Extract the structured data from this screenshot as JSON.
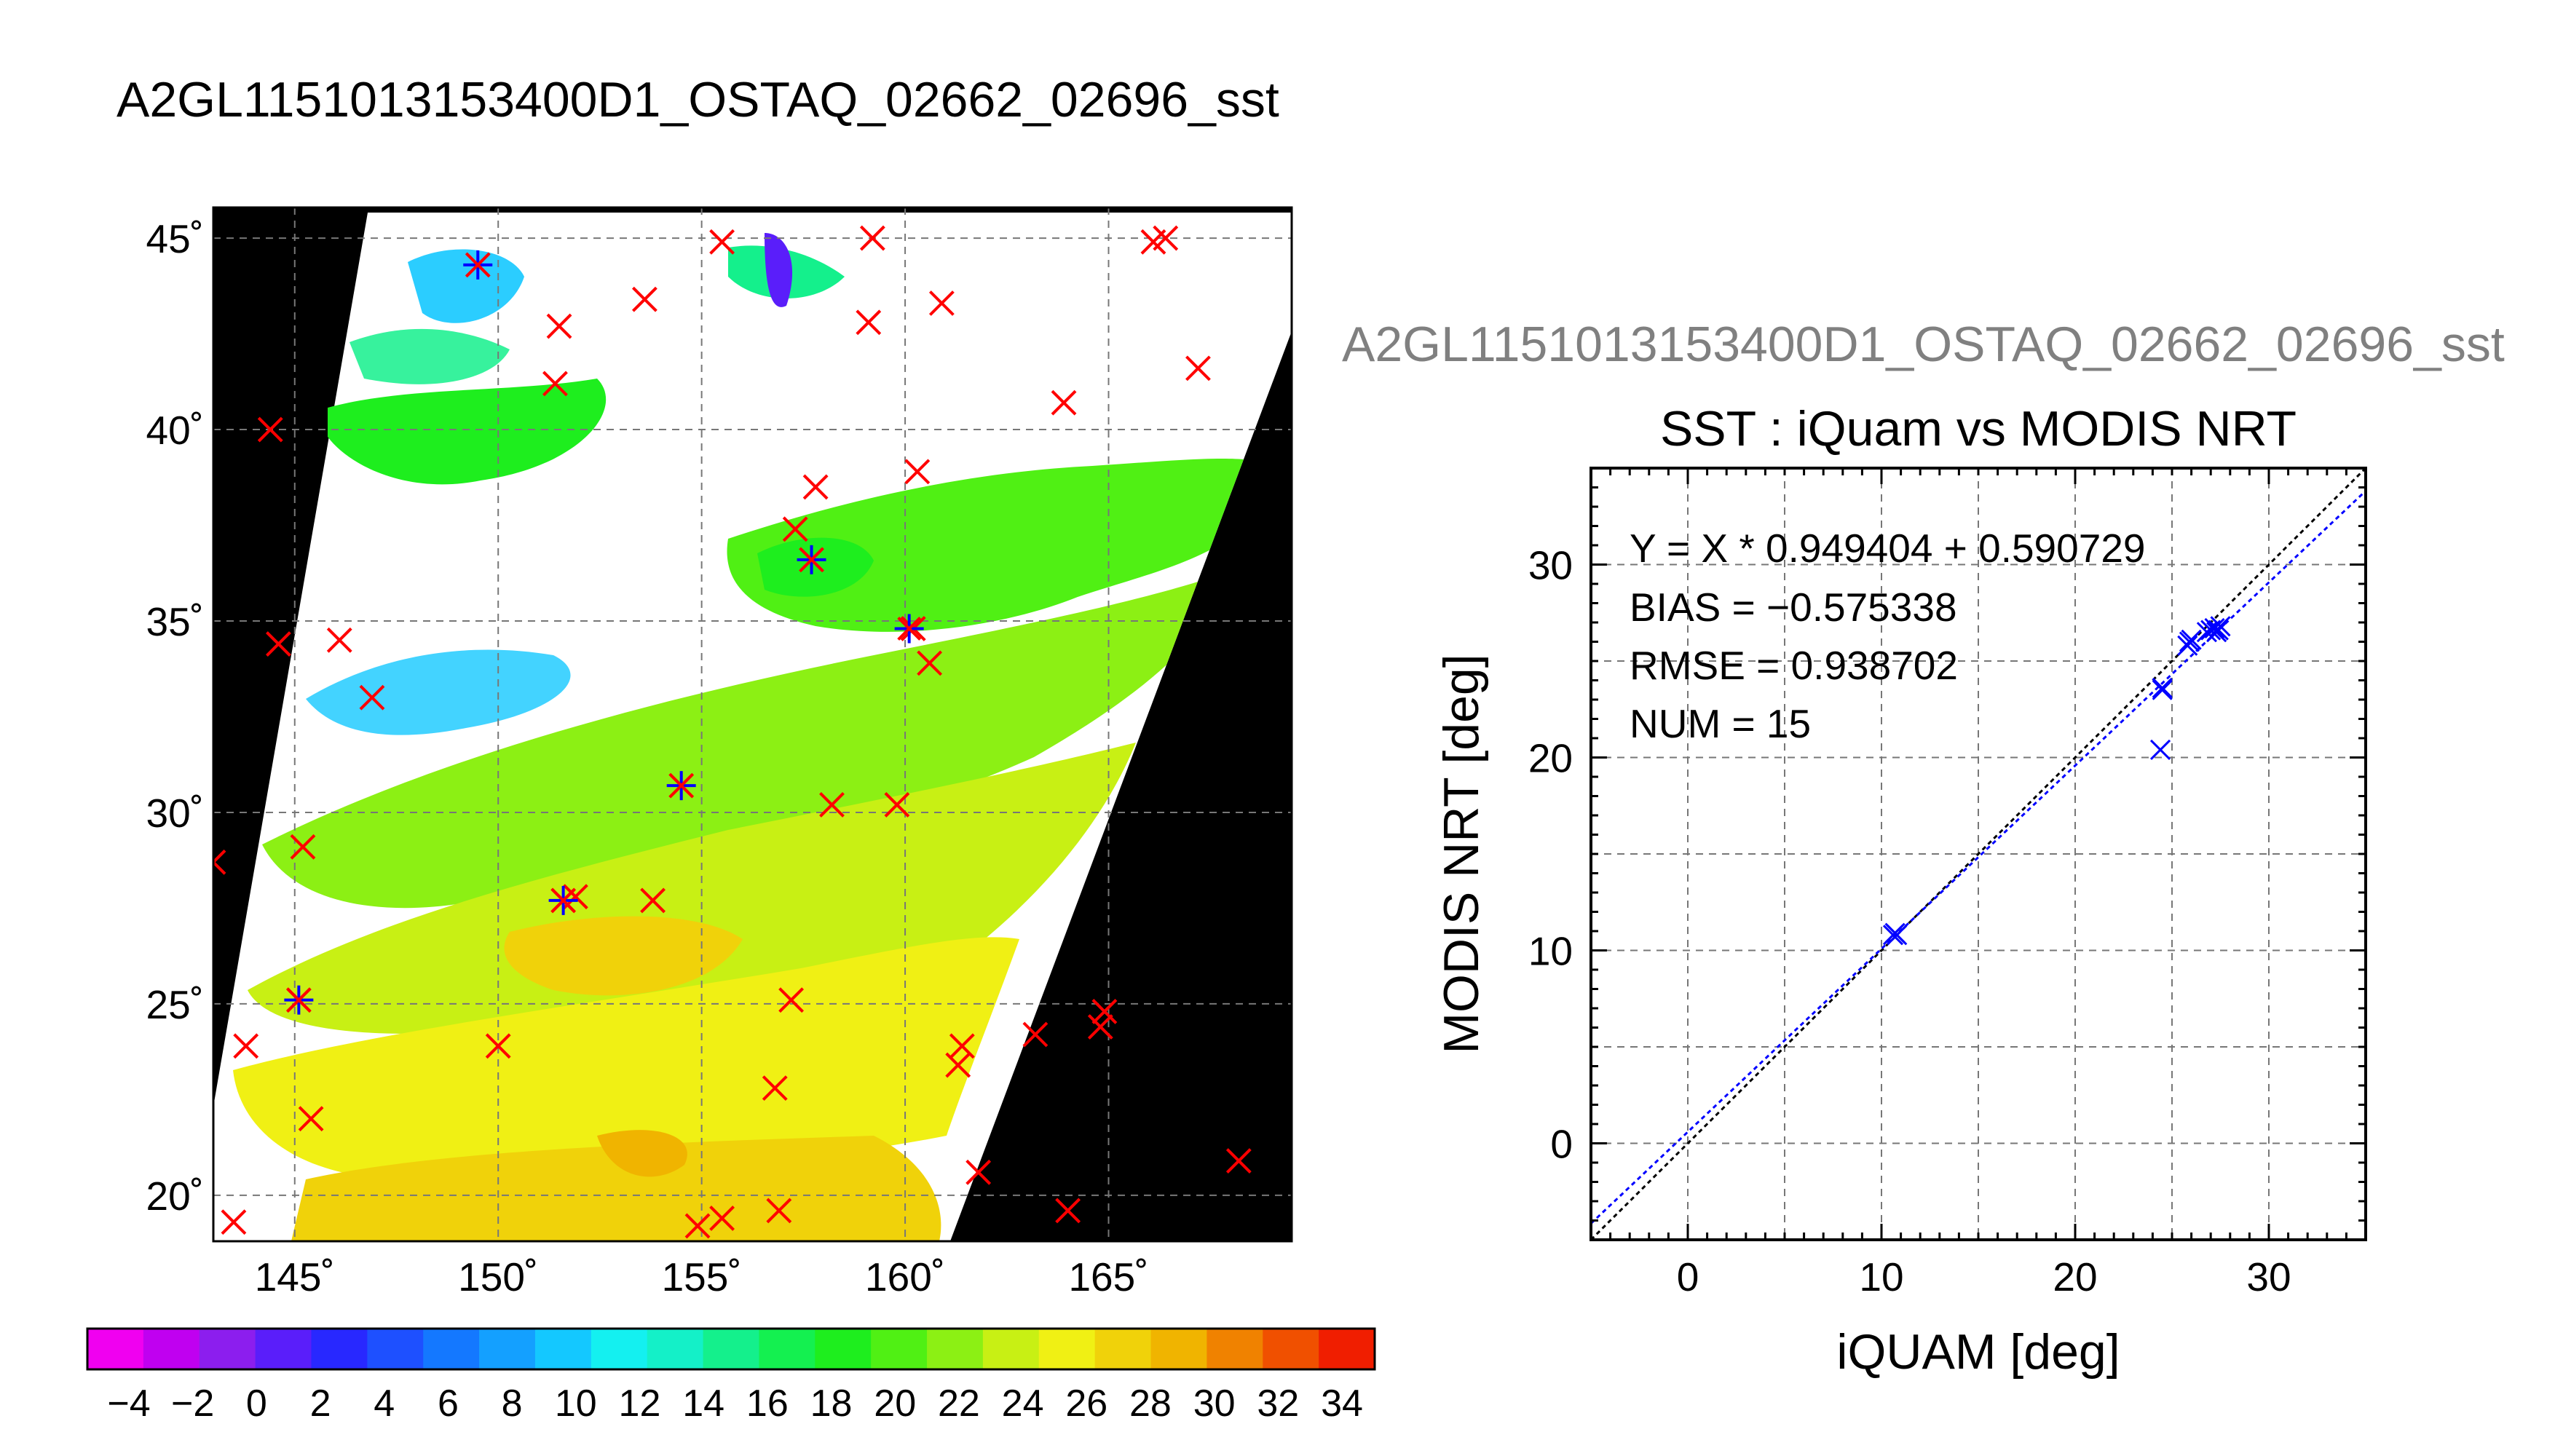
{
  "figure": {
    "title": "A2GL1151013153400D1_OSTAQ_02662_02696_sst",
    "scatter_title_gray": "A2GL1151013153400D1_OSTAQ_02662_02696_sst"
  },
  "colors": {
    "buoy_marker": "#ff0000",
    "matched_marker": "#0000ff",
    "fit_line": "#0000ff",
    "identity_line": "#000000",
    "land_bg": "#000000",
    "gray_title": "#808080"
  },
  "chart_data": [
    {
      "type": "heatmap",
      "name": "sst-map",
      "xlabel": "",
      "ylabel": "",
      "xlim": [
        143,
        169.5
      ],
      "ylim": [
        18.8,
        45.8
      ],
      "x_ticks": [
        145,
        150,
        155,
        160,
        165
      ],
      "x_tick_labels": [
        "145˚",
        "150˚",
        "155˚",
        "160˚",
        "165˚"
      ],
      "y_ticks": [
        20,
        25,
        30,
        35,
        40,
        45
      ],
      "y_tick_labels": [
        "20˚",
        "25˚",
        "30˚",
        "35˚",
        "40˚",
        "45˚"
      ],
      "grid": true,
      "buoy_points": [
        [
          149.5,
          44.3
        ],
        [
          151.5,
          42.7
        ],
        [
          153.6,
          43.4
        ],
        [
          155.5,
          44.9
        ],
        [
          159.1,
          42.8
        ],
        [
          160.9,
          43.3
        ],
        [
          159.2,
          45.0
        ],
        [
          166.1,
          44.9
        ],
        [
          166.4,
          45.0
        ],
        [
          144.4,
          40.0
        ],
        [
          151.4,
          41.2
        ],
        [
          163.9,
          40.7
        ],
        [
          167.2,
          41.6
        ],
        [
          157.8,
          38.5
        ],
        [
          160.3,
          38.9
        ],
        [
          157.3,
          37.4
        ],
        [
          157.7,
          36.6
        ],
        [
          144.6,
          34.4
        ],
        [
          146.1,
          34.5
        ],
        [
          146.9,
          33.0
        ],
        [
          160.2,
          34.8
        ],
        [
          160.6,
          33.9
        ],
        [
          154.5,
          30.7
        ],
        [
          158.2,
          30.2
        ],
        [
          159.8,
          30.2
        ],
        [
          143.0,
          28.7
        ],
        [
          145.2,
          29.1
        ],
        [
          151.6,
          27.7
        ],
        [
          151.9,
          27.8
        ],
        [
          153.8,
          27.7
        ],
        [
          145.1,
          25.1
        ],
        [
          157.2,
          25.1
        ],
        [
          143.8,
          23.9
        ],
        [
          150.0,
          23.9
        ],
        [
          145.4,
          22.0
        ],
        [
          156.8,
          22.8
        ],
        [
          161.4,
          23.9
        ],
        [
          161.3,
          23.4
        ],
        [
          163.2,
          24.2
        ],
        [
          164.8,
          24.4
        ],
        [
          164.9,
          24.8
        ],
        [
          143.5,
          19.3
        ],
        [
          154.9,
          19.2
        ],
        [
          155.5,
          19.4
        ],
        [
          156.9,
          19.6
        ],
        [
          161.8,
          20.6
        ],
        [
          164.0,
          19.6
        ],
        [
          168.2,
          20.9
        ]
      ],
      "matched_points": [
        [
          149.5,
          44.3
        ],
        [
          157.7,
          36.6
        ],
        [
          160.1,
          34.8
        ],
        [
          154.5,
          30.7
        ],
        [
          151.6,
          27.7
        ],
        [
          145.1,
          25.1
        ]
      ],
      "colorbar": {
        "min": -4,
        "max": 34,
        "step": 2,
        "tick_labels": [
          "−4",
          "−2",
          "0",
          "2",
          "4",
          "6",
          "8",
          "10",
          "12",
          "14",
          "16",
          "18",
          "20",
          "22",
          "24",
          "26",
          "28",
          "30",
          "32",
          "34"
        ],
        "colors": [
          "#f000f0",
          "#c000f0",
          "#8c1eee",
          "#5a1efa",
          "#2828ff",
          "#1e50ff",
          "#1478ff",
          "#14a0ff",
          "#14c8ff",
          "#14f0f0",
          "#14f0c8",
          "#14f08c",
          "#14f050",
          "#1eee1e",
          "#50f014",
          "#8cf014",
          "#c8f014",
          "#f0f014",
          "#f0d20a",
          "#f0b400",
          "#f08200",
          "#f05000",
          "#f01e00"
        ]
      }
    },
    {
      "type": "scatter",
      "name": "sst-scatter",
      "title": "SST : iQuam vs MODIS NRT",
      "xlabel": "iQUAM [deg]",
      "ylabel": "MODIS NRT [deg]",
      "xlim": [
        -5,
        35
      ],
      "ylim": [
        -5,
        35
      ],
      "x_ticks": [
        0,
        10,
        20,
        30
      ],
      "y_ticks": [
        0,
        10,
        20,
        30
      ],
      "grid": true,
      "points_x": [
        10.6,
        10.7,
        10.8,
        25.8,
        25.9,
        26.0,
        26.8,
        27.0,
        27.2,
        27.3,
        27.4,
        27.5,
        24.5,
        24.5,
        24.4
      ],
      "points_y": [
        10.8,
        10.9,
        10.8,
        25.8,
        26.0,
        26.1,
        26.5,
        26.6,
        26.7,
        26.5,
        26.6,
        26.8,
        23.5,
        23.6,
        20.4
      ],
      "fit": {
        "slope": 0.949404,
        "intercept": 0.590729
      },
      "stats": {
        "fit_text": "Y = X * 0.949404 + 0.590729",
        "bias_text": "BIAS = −0.575338",
        "rmse_text": "RMSE = 0.938702",
        "num_text": "NUM = 15"
      }
    }
  ]
}
